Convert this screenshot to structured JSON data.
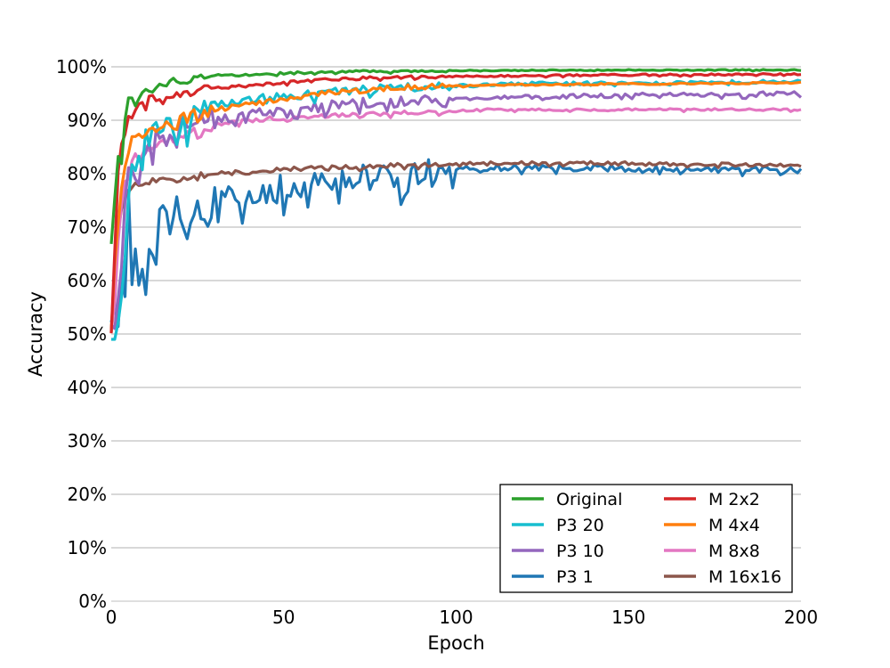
{
  "chart_data": {
    "type": "line",
    "xlabel": "Epoch",
    "ylabel": "Accuracy",
    "xlim": [
      0,
      200
    ],
    "ylim": [
      0,
      1
    ],
    "x_ticks": [
      0,
      50,
      100,
      150,
      200
    ],
    "x_tick_labels": [
      "0",
      "50",
      "100",
      "150",
      "200"
    ],
    "y_ticks": [
      0,
      0.1,
      0.2,
      0.3,
      0.4,
      0.5,
      0.6,
      0.7,
      0.8,
      0.9,
      1.0
    ],
    "y_tick_labels": [
      "0%",
      "10%",
      "20%",
      "30%",
      "40%",
      "50%",
      "60%",
      "70%",
      "80%",
      "90%",
      "100%"
    ],
    "grid": "horizontal",
    "legend": {
      "position": "bottom-right",
      "columns": 2
    },
    "series": [
      {
        "name": "Original",
        "color": "#2ca02c",
        "keypoints": [
          [
            0,
            0.67
          ],
          [
            1,
            0.75
          ],
          [
            2,
            0.83
          ],
          [
            3,
            0.82
          ],
          [
            4,
            0.9
          ],
          [
            5,
            0.94
          ],
          [
            6,
            0.945
          ],
          [
            7,
            0.93
          ],
          [
            8,
            0.94
          ],
          [
            10,
            0.96
          ],
          [
            12,
            0.955
          ],
          [
            14,
            0.97
          ],
          [
            16,
            0.965
          ],
          [
            18,
            0.975
          ],
          [
            20,
            0.97
          ],
          [
            25,
            0.98
          ],
          [
            30,
            0.985
          ],
          [
            40,
            0.985
          ],
          [
            50,
            0.988
          ],
          [
            60,
            0.99
          ],
          [
            80,
            0.992
          ],
          [
            100,
            0.993
          ],
          [
            150,
            0.994
          ],
          [
            200,
            0.994
          ]
        ],
        "noise": [
          0.004,
          0.002,
          0.001
        ]
      },
      {
        "name": "P3 20",
        "color": "#17becf",
        "keypoints": [
          [
            0,
            0.52
          ],
          [
            1,
            0.5
          ],
          [
            2,
            0.52
          ],
          [
            3,
            0.56
          ],
          [
            4,
            0.66
          ],
          [
            5,
            0.74
          ],
          [
            6,
            0.8
          ],
          [
            8,
            0.84
          ],
          [
            10,
            0.86
          ],
          [
            14,
            0.88
          ],
          [
            20,
            0.9
          ],
          [
            30,
            0.93
          ],
          [
            40,
            0.94
          ],
          [
            50,
            0.945
          ],
          [
            60,
            0.95
          ],
          [
            80,
            0.96
          ],
          [
            100,
            0.965
          ],
          [
            130,
            0.97
          ],
          [
            160,
            0.97
          ],
          [
            200,
            0.973
          ]
        ],
        "noise": [
          0.025,
          0.008,
          0.003
        ]
      },
      {
        "name": "P3 10",
        "color": "#9467bd",
        "keypoints": [
          [
            0,
            0.52
          ],
          [
            1,
            0.52
          ],
          [
            2,
            0.58
          ],
          [
            3,
            0.65
          ],
          [
            4,
            0.74
          ],
          [
            5,
            0.79
          ],
          [
            6,
            0.8
          ],
          [
            8,
            0.8
          ],
          [
            10,
            0.83
          ],
          [
            12,
            0.85
          ],
          [
            15,
            0.86
          ],
          [
            20,
            0.88
          ],
          [
            30,
            0.9
          ],
          [
            40,
            0.91
          ],
          [
            50,
            0.92
          ],
          [
            60,
            0.925
          ],
          [
            80,
            0.935
          ],
          [
            100,
            0.94
          ],
          [
            130,
            0.945
          ],
          [
            160,
            0.948
          ],
          [
            200,
            0.95
          ]
        ],
        "noise": [
          0.03,
          0.01,
          0.004
        ]
      },
      {
        "name": "P3 1",
        "color": "#1f77b4",
        "keypoints": [
          [
            0,
            0.52
          ],
          [
            1,
            0.55
          ],
          [
            2,
            0.57
          ],
          [
            3,
            0.62
          ],
          [
            4,
            0.68
          ],
          [
            5,
            0.72
          ],
          [
            6,
            0.68
          ],
          [
            8,
            0.65
          ],
          [
            10,
            0.66
          ],
          [
            12,
            0.68
          ],
          [
            15,
            0.69
          ],
          [
            20,
            0.72
          ],
          [
            25,
            0.74
          ],
          [
            30,
            0.75
          ],
          [
            40,
            0.76
          ],
          [
            50,
            0.775
          ],
          [
            60,
            0.785
          ],
          [
            70,
            0.79
          ],
          [
            80,
            0.795
          ],
          [
            90,
            0.8
          ],
          [
            100,
            0.81
          ],
          [
            120,
            0.812
          ],
          [
            150,
            0.81
          ],
          [
            200,
            0.806
          ]
        ],
        "noise": [
          0.06,
          0.025,
          0.006
        ]
      },
      {
        "name": "M 2x2",
        "color": "#d62728",
        "keypoints": [
          [
            0,
            0.5
          ],
          [
            1,
            0.65
          ],
          [
            2,
            0.8
          ],
          [
            3,
            0.85
          ],
          [
            4,
            0.88
          ],
          [
            5,
            0.9
          ],
          [
            6,
            0.91
          ],
          [
            8,
            0.925
          ],
          [
            10,
            0.935
          ],
          [
            14,
            0.945
          ],
          [
            20,
            0.95
          ],
          [
            30,
            0.96
          ],
          [
            40,
            0.965
          ],
          [
            50,
            0.97
          ],
          [
            60,
            0.975
          ],
          [
            80,
            0.98
          ],
          [
            100,
            0.982
          ],
          [
            150,
            0.985
          ],
          [
            200,
            0.986
          ]
        ],
        "noise": [
          0.008,
          0.003,
          0.0015
        ]
      },
      {
        "name": "M 4x4",
        "color": "#ff7f0e",
        "keypoints": [
          [
            0,
            0.5
          ],
          [
            1,
            0.62
          ],
          [
            2,
            0.72
          ],
          [
            3,
            0.78
          ],
          [
            4,
            0.82
          ],
          [
            5,
            0.85
          ],
          [
            6,
            0.86
          ],
          [
            8,
            0.87
          ],
          [
            10,
            0.88
          ],
          [
            15,
            0.89
          ],
          [
            20,
            0.9
          ],
          [
            30,
            0.92
          ],
          [
            40,
            0.93
          ],
          [
            50,
            0.94
          ],
          [
            60,
            0.95
          ],
          [
            80,
            0.96
          ],
          [
            100,
            0.965
          ],
          [
            150,
            0.968
          ],
          [
            200,
            0.97
          ]
        ],
        "noise": [
          0.012,
          0.005,
          0.0015
        ]
      },
      {
        "name": "M 8x8",
        "color": "#e377c2",
        "keypoints": [
          [
            0,
            0.5
          ],
          [
            1,
            0.58
          ],
          [
            2,
            0.68
          ],
          [
            3,
            0.74
          ],
          [
            4,
            0.78
          ],
          [
            5,
            0.8
          ],
          [
            6,
            0.82
          ],
          [
            8,
            0.84
          ],
          [
            10,
            0.85
          ],
          [
            15,
            0.86
          ],
          [
            20,
            0.87
          ],
          [
            30,
            0.89
          ],
          [
            40,
            0.9
          ],
          [
            50,
            0.905
          ],
          [
            70,
            0.91
          ],
          [
            90,
            0.915
          ],
          [
            110,
            0.92
          ],
          [
            150,
            0.92
          ],
          [
            200,
            0.92
          ]
        ],
        "noise": [
          0.012,
          0.004,
          0.002
        ]
      },
      {
        "name": "M 16x16",
        "color": "#8c564b",
        "keypoints": [
          [
            0,
            0.5
          ],
          [
            1,
            0.62
          ],
          [
            2,
            0.7
          ],
          [
            3,
            0.74
          ],
          [
            4,
            0.76
          ],
          [
            5,
            0.77
          ],
          [
            6,
            0.775
          ],
          [
            8,
            0.78
          ],
          [
            10,
            0.785
          ],
          [
            20,
            0.79
          ],
          [
            30,
            0.8
          ],
          [
            50,
            0.808
          ],
          [
            80,
            0.815
          ],
          [
            110,
            0.82
          ],
          [
            140,
            0.82
          ],
          [
            170,
            0.818
          ],
          [
            200,
            0.816
          ]
        ],
        "noise": [
          0.006,
          0.004,
          0.003
        ]
      }
    ]
  }
}
